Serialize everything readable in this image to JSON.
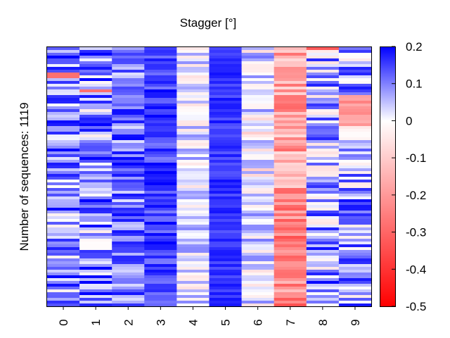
{
  "chart_data": {
    "type": "heatmap",
    "title": "Stagger [°]",
    "xlabel": "",
    "ylabel": "Number of sequences: 1119",
    "categories": [
      "0",
      "1",
      "2",
      "3",
      "4",
      "5",
      "6",
      "7",
      "8",
      "9"
    ],
    "n_rows": 1119,
    "colorbar": {
      "vmin": -0.5,
      "vmax": 0.2,
      "ticks": [
        "0.2",
        "0.1",
        "0",
        "-0.1",
        "-0.2",
        "-0.3",
        "-0.4",
        "-0.5"
      ],
      "tick_values": [
        0.2,
        0.1,
        0,
        -0.1,
        -0.2,
        -0.3,
        -0.4,
        -0.5
      ],
      "colormap": "bwr",
      "colors": {
        "low": "#ff0000",
        "mid": "#ffffff",
        "high": "#0000ff"
      }
    },
    "column_typical_values": [
      0.09,
      0.09,
      0.11,
      0.15,
      0.02,
      0.16,
      0.02,
      -0.18,
      0.07,
      0.07
    ],
    "grid": false,
    "legend": "none"
  }
}
